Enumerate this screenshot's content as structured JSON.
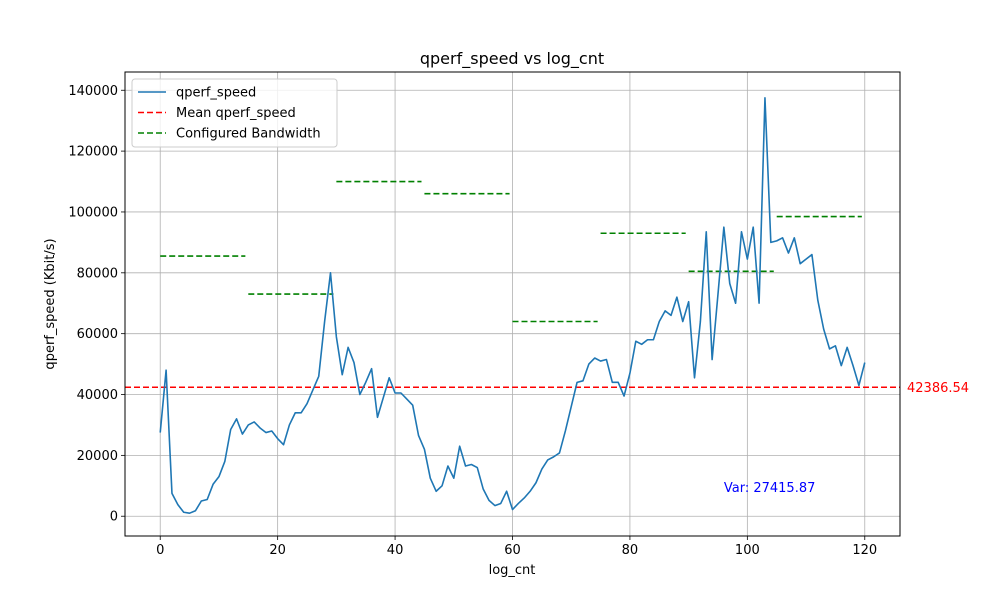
{
  "chart_data": {
    "type": "line",
    "title": "qperf_speed vs log_cnt",
    "xlabel": "log_cnt",
    "ylabel": "qperf_speed (Kbit/s)",
    "xlim": [
      -6,
      126
    ],
    "ylim": [
      -6500,
      146000
    ],
    "grid": true,
    "legend_position": "top-left",
    "x_ticks": [
      0,
      20,
      40,
      60,
      80,
      100,
      120
    ],
    "y_ticks": [
      0,
      20000,
      40000,
      60000,
      80000,
      100000,
      120000,
      140000
    ],
    "series": [
      {
        "name": "qperf_speed",
        "color": "#1f77b4",
        "x": [
          0,
          1,
          2,
          3,
          4,
          5,
          6,
          7,
          8,
          9,
          10,
          11,
          12,
          13,
          14,
          15,
          16,
          17,
          18,
          19,
          20,
          21,
          22,
          23,
          24,
          25,
          26,
          27,
          28,
          29,
          30,
          31,
          32,
          33,
          34,
          35,
          36,
          37,
          38,
          39,
          40,
          41,
          42,
          43,
          44,
          45,
          46,
          47,
          48,
          49,
          50,
          51,
          52,
          53,
          54,
          55,
          56,
          57,
          58,
          59,
          60,
          61,
          62,
          63,
          64,
          65,
          66,
          67,
          68,
          69,
          70,
          71,
          72,
          73,
          74,
          75,
          76,
          77,
          78,
          79,
          80,
          81,
          82,
          83,
          84,
          85,
          86,
          87,
          88,
          89,
          90,
          91,
          92,
          93,
          94,
          95,
          96,
          97,
          98,
          99,
          100,
          101,
          102,
          103,
          104,
          105,
          106,
          107,
          108,
          109,
          110,
          111,
          112,
          113,
          114,
          115,
          116,
          117,
          118,
          119,
          120
        ],
        "values": [
          27500,
          48000,
          7500,
          3800,
          1300,
          1000,
          1800,
          5000,
          5500,
          10500,
          13000,
          18000,
          28500,
          32000,
          27000,
          30000,
          31000,
          29000,
          27500,
          28000,
          25500,
          23500,
          30000,
          34000,
          34000,
          37000,
          41500,
          46000,
          64000,
          80000,
          59000,
          46500,
          55500,
          50500,
          40000,
          44000,
          48500,
          32500,
          39000,
          45500,
          40500,
          40500,
          38500,
          36500,
          26500,
          22000,
          12500,
          8200,
          10000,
          16500,
          12500,
          23000,
          16500,
          17000,
          16000,
          9000,
          5200,
          3500,
          4200,
          8200,
          2200,
          4200,
          6000,
          8200,
          11000,
          15500,
          18500,
          19500,
          20800,
          28000,
          36000,
          44000,
          44500,
          50000,
          52000,
          51000,
          51500,
          44000,
          44000,
          39500,
          47000,
          57500,
          56500,
          58000,
          58000,
          64000,
          67500,
          66000,
          72000,
          64000,
          70500,
          45500,
          64000,
          93500,
          51500,
          73000,
          95000,
          76500,
          70000,
          93500,
          84500,
          95000,
          70000,
          137500,
          90000,
          90500,
          91500,
          86500,
          91500,
          83000,
          84500,
          86000,
          71000,
          61500,
          55000,
          56000,
          49500,
          55500,
          49500,
          43000,
          50500
        ]
      },
      {
        "name": "Mean qperf_speed",
        "color": "#ff0000",
        "value": 42386.54
      },
      {
        "name": "Configured Bandwidth",
        "color": "#008000",
        "segments": [
          {
            "x": [
              0,
              14.5
            ],
            "value": 85500
          },
          {
            "x": [
              15,
              29.5
            ],
            "value": 73000
          },
          {
            "x": [
              30,
              44.5
            ],
            "value": 110000
          },
          {
            "x": [
              45,
              59.5
            ],
            "value": 106000
          },
          {
            "x": [
              60,
              74.5
            ],
            "value": 64000
          },
          {
            "x": [
              75,
              89.5
            ],
            "value": 93000
          },
          {
            "x": [
              90,
              104.5
            ],
            "value": 80500
          },
          {
            "x": [
              105,
              119.5
            ],
            "value": 98500
          }
        ]
      }
    ],
    "annotations": {
      "mean_label": "42386.54",
      "variance_label": "Var: 27415.87",
      "variance_at": {
        "x": 96,
        "y": 9500
      }
    }
  }
}
